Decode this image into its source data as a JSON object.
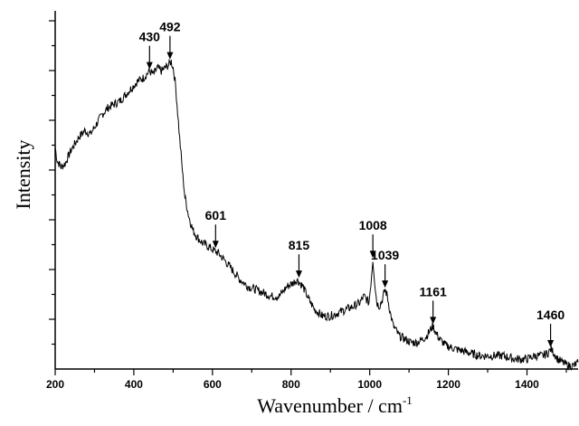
{
  "chart_data": {
    "type": "line",
    "xlabel": "Wavenumber / cm",
    "xlabel_sup": "-1",
    "ylabel": "Intensity",
    "xlim": [
      200,
      1530
    ],
    "ylim": [
      0,
      100
    ],
    "x_ticks": [
      "200",
      "400",
      "600",
      "800",
      "1000",
      "1200",
      "1400"
    ],
    "y_tick_labels": false,
    "grid": false,
    "series": [
      {
        "line_color": "#000000",
        "x": [
          200,
          205,
          215,
          225,
          240,
          260,
          275,
          290,
          305,
          320,
          335,
          350,
          365,
          380,
          395,
          410,
          425,
          440,
          450,
          460,
          470,
          480,
          490,
          495,
          500,
          505,
          510,
          515,
          520,
          525,
          530,
          540,
          550,
          560,
          575,
          590,
          601,
          615,
          630,
          650,
          670,
          690,
          710,
          730,
          750,
          770,
          790,
          805,
          815,
          830,
          845,
          860,
          880,
          900,
          920,
          940,
          960,
          975,
          985,
          992,
          998,
          1003,
          1008,
          1013,
          1018,
          1025,
          1032,
          1039,
          1045,
          1052,
          1060,
          1075,
          1090,
          1105,
          1120,
          1135,
          1145,
          1155,
          1161,
          1168,
          1178,
          1195,
          1220,
          1250,
          1280,
          1310,
          1340,
          1370,
          1400,
          1420,
          1440,
          1455,
          1460,
          1468,
          1478,
          1490,
          1505,
          1520,
          1530
        ],
        "y": [
          67,
          63,
          61,
          62,
          66,
          70,
          72,
          71,
          74,
          77,
          79,
          80,
          81,
          83,
          85,
          87,
          88,
          90,
          89,
          91,
          90,
          91,
          92,
          93,
          91,
          87,
          80,
          72,
          65,
          58,
          52,
          46,
          42,
          40,
          38,
          37,
          36,
          35,
          33,
          30,
          27,
          25,
          24,
          23,
          22,
          22,
          25,
          26,
          27,
          25,
          21,
          18,
          16,
          16,
          17,
          18,
          19,
          20,
          22,
          21,
          20,
          26,
          33,
          26,
          20,
          19,
          21,
          24,
          22,
          17,
          13,
          10,
          9,
          8,
          8,
          9,
          10,
          12,
          13,
          11,
          9,
          7,
          6,
          5,
          4,
          4,
          4,
          3,
          3,
          4,
          4,
          5,
          6,
          5,
          3,
          2,
          1,
          1,
          2
        ]
      }
    ],
    "annotations": [
      {
        "label": "430",
        "x": 440,
        "y": 90
      },
      {
        "label": "492",
        "x": 492,
        "y": 93
      },
      {
        "label": "601",
        "x": 608,
        "y": 36
      },
      {
        "label": "815",
        "x": 820,
        "y": 27
      },
      {
        "label": "1008",
        "x": 1008,
        "y": 33
      },
      {
        "label": "1039",
        "x": 1039,
        "y": 24
      },
      {
        "label": "1161",
        "x": 1161,
        "y": 13
      },
      {
        "label": "1460",
        "x": 1460,
        "y": 6
      }
    ]
  }
}
